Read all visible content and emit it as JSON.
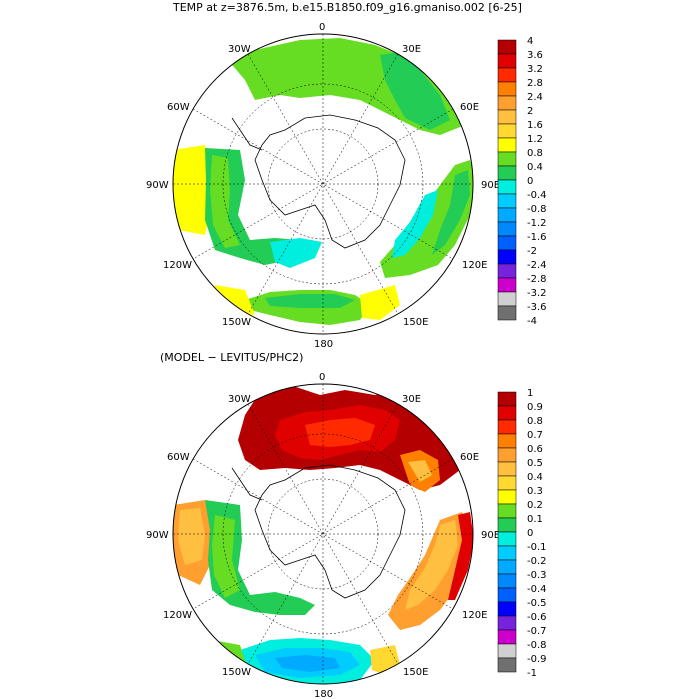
{
  "panel_top": {
    "title": "TEMP at z=3876.5m, b.e15.B1850.f09_g16.gmaniso.002 [6-25]",
    "lon_labels": {
      "n": "0",
      "nw30": "30W",
      "ne30": "30E",
      "w60": "60W",
      "e60": "60E",
      "w90": "90W",
      "e90": "90E",
      "w120": "120W",
      "e120": "120E",
      "w150": "150W",
      "e150": "150E",
      "s": "180"
    },
    "colorbar": {
      "labels": [
        "4",
        "3.6",
        "3.2",
        "2.8",
        "2.4",
        "2",
        "1.6",
        "1.2",
        "0.8",
        "0.4",
        "0",
        "-0.4",
        "-0.8",
        "-1.2",
        "-1.6",
        "-2",
        "-2.4",
        "-2.8",
        "-3.2",
        "-3.6",
        "-4"
      ],
      "colors": [
        "#b40000",
        "#e00000",
        "#ff2a00",
        "#ff7f00",
        "#ff9f30",
        "#ffbf40",
        "#ffd830",
        "#ffff00",
        "#66dd22",
        "#22cc55",
        "#00eedd",
        "#00ccff",
        "#00aaff",
        "#0088ff",
        "#0060ff",
        "#0000ff",
        "#7722dd",
        "#cc00cc",
        "#d0d0d0",
        "#707070"
      ]
    }
  },
  "panel_bottom": {
    "title": "(MODEL − LEVITUS/PHC2)",
    "lon_labels": {
      "n": "0",
      "nw30": "30W",
      "ne30": "30E",
      "w60": "60W",
      "e60": "60E",
      "w90": "90W",
      "e90": "90E",
      "w120": "120W",
      "e120": "120E",
      "w150": "150W",
      "e150": "150E",
      "s": "180"
    },
    "colorbar": {
      "labels": [
        "1",
        "0.9",
        "0.8",
        "0.7",
        "0.6",
        "0.5",
        "0.4",
        "0.3",
        "0.2",
        "0.1",
        "0",
        "-0.1",
        "-0.2",
        "-0.3",
        "-0.4",
        "-0.5",
        "-0.6",
        "-0.7",
        "-0.8",
        "-0.9",
        "-1"
      ],
      "colors": [
        "#b40000",
        "#e00000",
        "#ff2a00",
        "#ff7f00",
        "#ff9f30",
        "#ffbf40",
        "#ffd830",
        "#ffff00",
        "#66dd22",
        "#22cc55",
        "#00eedd",
        "#00ccff",
        "#00aaff",
        "#0088ff",
        "#0060ff",
        "#0000ff",
        "#7722dd",
        "#cc00cc",
        "#d0d0d0",
        "#707070"
      ]
    }
  }
}
